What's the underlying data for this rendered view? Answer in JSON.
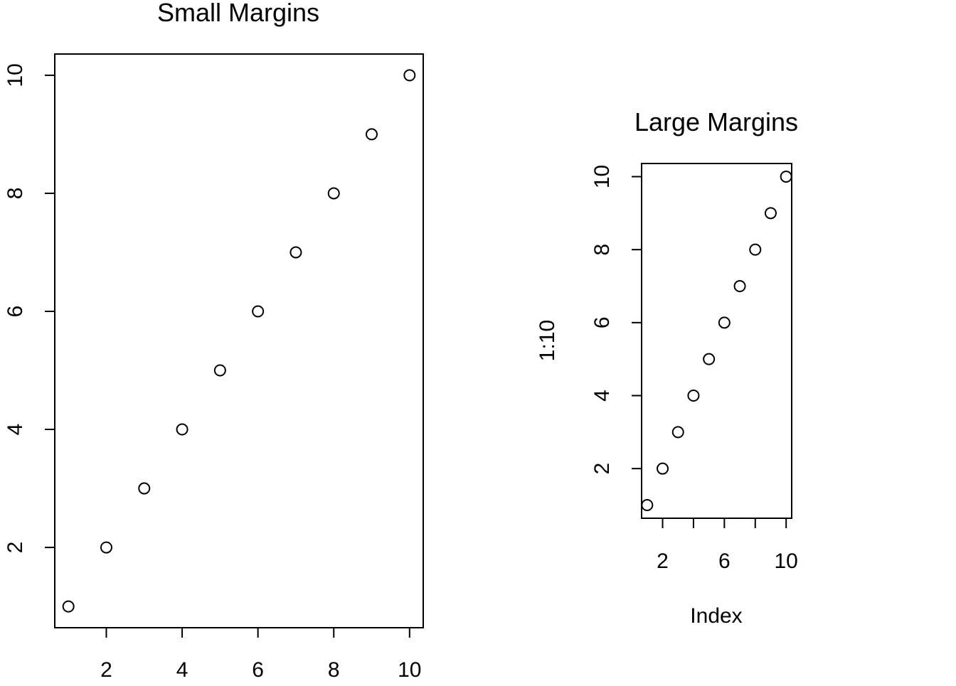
{
  "chart_data": [
    {
      "type": "scatter",
      "title": "Small Margins",
      "xlabel": "",
      "ylabel": "",
      "x": [
        1,
        2,
        3,
        4,
        5,
        6,
        7,
        8,
        9,
        10
      ],
      "y": [
        1,
        2,
        3,
        4,
        5,
        6,
        7,
        8,
        9,
        10
      ],
      "xlim": [
        0.64,
        10.36
      ],
      "ylim": [
        0.64,
        10.36
      ],
      "x_ticks": [
        2,
        4,
        6,
        8,
        10
      ],
      "y_ticks": [
        2,
        4,
        6,
        8,
        10
      ],
      "x_tick_labels": [
        "2",
        "4",
        "6",
        "8",
        "10"
      ],
      "y_tick_labels": [
        "2",
        "4",
        "6",
        "8",
        "10"
      ],
      "marker": "open-circle",
      "grid": false,
      "legend": "none"
    },
    {
      "type": "scatter",
      "title": "Large Margins",
      "xlabel": "Index",
      "ylabel": "1:10",
      "x": [
        1,
        2,
        3,
        4,
        5,
        6,
        7,
        8,
        9,
        10
      ],
      "y": [
        1,
        2,
        3,
        4,
        5,
        6,
        7,
        8,
        9,
        10
      ],
      "xlim": [
        0.64,
        10.36
      ],
      "ylim": [
        0.64,
        10.36
      ],
      "x_ticks": [
        2,
        4,
        6,
        8,
        10
      ],
      "y_ticks": [
        2,
        4,
        6,
        8,
        10
      ],
      "x_tick_labels": [
        "2",
        "",
        "6",
        "",
        "10"
      ],
      "y_tick_labels": [
        "2",
        "4",
        "6",
        "8",
        "10"
      ],
      "marker": "open-circle",
      "grid": false,
      "legend": "none"
    }
  ]
}
